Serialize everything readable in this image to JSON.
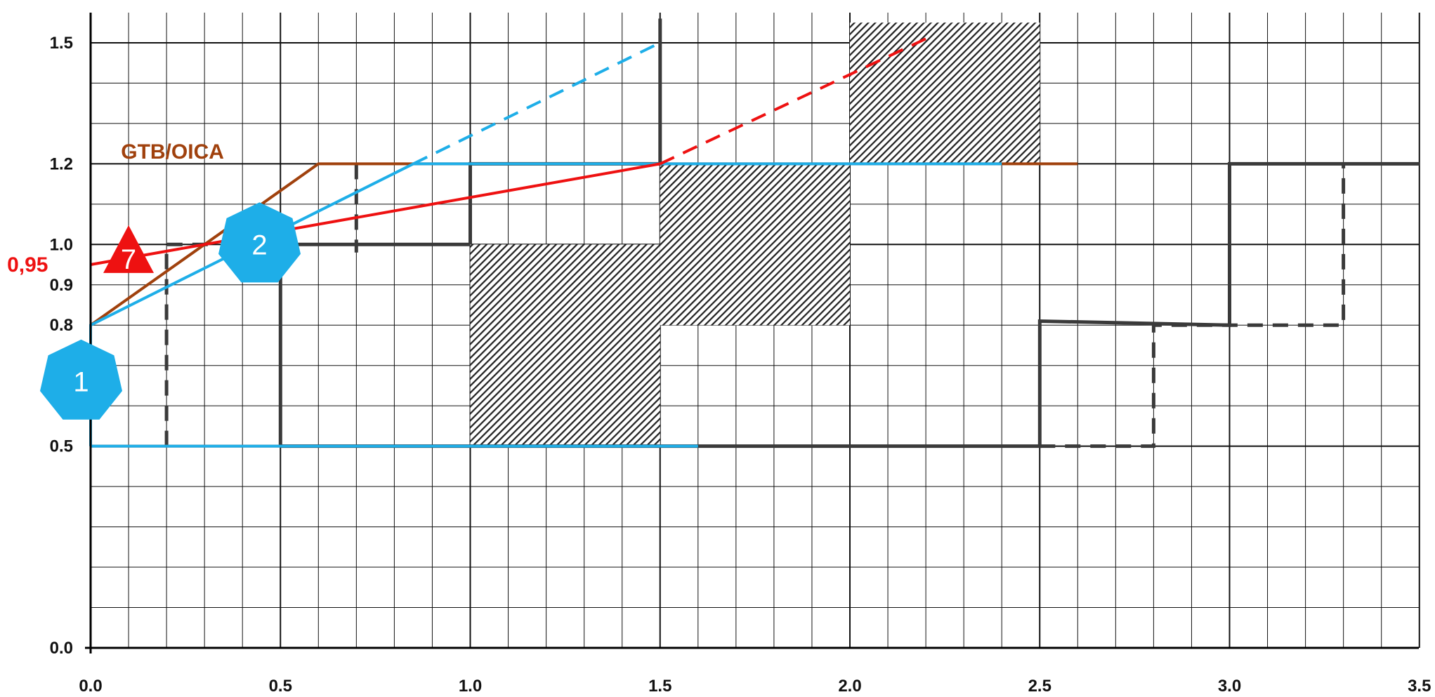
{
  "chart_data": {
    "type": "line",
    "xlim": [
      0,
      3.5
    ],
    "ylim": [
      0,
      1.5
    ],
    "x_ticks": [
      "0.0",
      "0.5",
      "1.0",
      "1.5",
      "2.0",
      "2.5",
      "3.0",
      "3.5"
    ],
    "y_ticks": [
      {
        "value": 0.0,
        "label": "0.0"
      },
      {
        "value": 0.5,
        "label": "0.5"
      },
      {
        "value": 0.8,
        "label": "0.8"
      },
      {
        "value": 0.9,
        "label": "0.9"
      },
      {
        "value": 1.0,
        "label": "1.0"
      },
      {
        "value": 1.2,
        "label": "1.2"
      },
      {
        "value": 1.5,
        "label": "1.5"
      }
    ],
    "grid": true,
    "colors": {
      "dark": "#3a3a3a",
      "brown": "#a0410d",
      "cyan": "#1eaee8",
      "red": "#ee1111"
    },
    "hatched_regions": [
      {
        "x": [
          1.0,
          1.5
        ],
        "y": [
          0.5,
          1.0
        ]
      },
      {
        "x": [
          1.5,
          2.0
        ],
        "y": [
          0.8,
          1.2
        ]
      },
      {
        "x": [
          2.0,
          2.5
        ],
        "y": [
          1.2,
          1.55
        ]
      }
    ],
    "series": [
      {
        "color": "dark",
        "dashed": false,
        "points": [
          [
            0.5,
            0.5
          ],
          [
            0.5,
            1.0
          ],
          [
            1.0,
            1.0
          ]
        ]
      },
      {
        "color": "dark",
        "dashed": false,
        "points": [
          [
            0.5,
            0.5
          ],
          [
            2.5,
            0.5
          ],
          [
            2.5,
            0.81
          ],
          [
            3.0,
            0.8
          ],
          [
            3.0,
            1.2
          ],
          [
            3.5,
            1.2
          ]
        ]
      },
      {
        "color": "dark",
        "dashed": false,
        "points": [
          [
            1.0,
            1.0
          ],
          [
            1.0,
            1.2
          ],
          [
            1.5,
            1.2
          ],
          [
            1.5,
            1.56
          ]
        ]
      },
      {
        "color": "dark",
        "dashed": true,
        "points": [
          [
            0.2,
            0.5
          ],
          [
            0.2,
            1.0
          ],
          [
            0.32,
            1.0
          ]
        ]
      },
      {
        "color": "dark",
        "dashed": true,
        "points": [
          [
            0.7,
            1.2
          ],
          [
            0.7,
            0.98
          ]
        ]
      },
      {
        "color": "dark",
        "dashed": true,
        "points": [
          [
            2.5,
            0.5
          ],
          [
            2.8,
            0.5
          ],
          [
            2.8,
            0.8
          ],
          [
            3.3,
            0.8
          ],
          [
            3.3,
            1.2
          ]
        ]
      },
      {
        "color": "brown",
        "dashed": false,
        "points": [
          [
            0.0,
            0.5
          ],
          [
            0.5,
            0.5
          ]
        ]
      },
      {
        "color": "brown",
        "dashed": false,
        "points": [
          [
            0.0,
            0.8
          ],
          [
            0.6,
            1.2
          ],
          [
            2.6,
            1.2
          ]
        ]
      },
      {
        "color": "cyan",
        "dashed": false,
        "points": [
          [
            0.0,
            0.5
          ],
          [
            0.0,
            0.8
          ],
          [
            0.85,
            1.2
          ],
          [
            2.4,
            1.2
          ]
        ]
      },
      {
        "color": "cyan",
        "dashed": false,
        "points": [
          [
            0.0,
            0.5
          ],
          [
            1.6,
            0.5
          ]
        ]
      },
      {
        "color": "cyan",
        "dashed": true,
        "points": [
          [
            0.85,
            1.2
          ],
          [
            1.5,
            1.5
          ]
        ]
      },
      {
        "color": "red",
        "dashed": false,
        "points": [
          [
            0.0,
            0.95
          ],
          [
            1.5,
            1.2
          ]
        ]
      },
      {
        "color": "red",
        "dashed": true,
        "points": [
          [
            1.5,
            1.2
          ],
          [
            2.2,
            1.51
          ]
        ]
      }
    ],
    "annotations": [
      {
        "text": "GTB/OICA",
        "x": 0.08,
        "y": 1.23,
        "color": "brown"
      },
      {
        "text": "0,95",
        "x": -0.22,
        "y": 0.95,
        "color": "red"
      }
    ],
    "badges": [
      {
        "shape": "heptagon",
        "label": "1",
        "x": -0.025,
        "y": 0.66,
        "color": "cyan"
      },
      {
        "shape": "heptagon",
        "label": "2",
        "x": 0.445,
        "y": 1.0,
        "color": "cyan"
      },
      {
        "shape": "triangle",
        "label": "7",
        "x": 0.1,
        "y": 0.985,
        "color": "red"
      }
    ]
  }
}
